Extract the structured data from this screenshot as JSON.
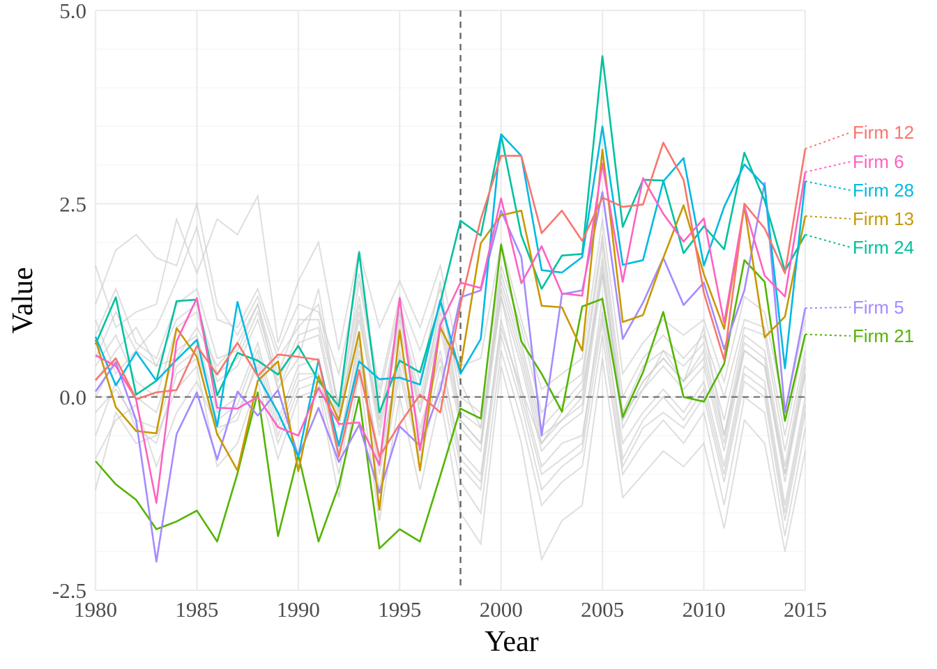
{
  "chart_data": {
    "type": "line",
    "title": "",
    "xlabel": "Year",
    "ylabel": "Value",
    "xlim": [
      1980,
      2015
    ],
    "ylim": [
      -2.5,
      5.0
    ],
    "x_ticks": [
      "1980",
      "1985",
      "1990",
      "1995",
      "2000",
      "2005",
      "2010",
      "2015"
    ],
    "x_tick_values": [
      1980,
      1985,
      1990,
      1995,
      2000,
      2005,
      2010,
      2015
    ],
    "y_ticks": [
      "-2.5",
      "0.0",
      "2.5",
      "5.0"
    ],
    "y_tick_values": [
      -2.5,
      0,
      2.5,
      5
    ],
    "grid": true,
    "reference_lines": {
      "vertical_year": 1998,
      "horizontal_value": 0
    },
    "legend": "direct labels at right end",
    "x": [
      1980,
      1981,
      1982,
      1983,
      1984,
      1985,
      1986,
      1987,
      1988,
      1989,
      1990,
      1991,
      1992,
      1993,
      1994,
      1995,
      1996,
      1997,
      1998,
      1999,
      2000,
      2001,
      2002,
      2003,
      2004,
      2005,
      2006,
      2007,
      2008,
      2009,
      2010,
      2011,
      2012,
      2013,
      2014,
      2015
    ],
    "series": [
      {
        "name": "Firm 12",
        "color": "#F8766D",
        "values": [
          0.22,
          0.5,
          -0.03,
          0.06,
          0.09,
          0.66,
          0.29,
          0.7,
          0.27,
          0.55,
          0.52,
          0.48,
          -0.77,
          0.35,
          -0.77,
          -0.35,
          0.03,
          -0.2,
          1.2,
          2.3,
          3.12,
          3.12,
          2.12,
          2.41,
          2.02,
          2.58,
          2.46,
          2.49,
          3.29,
          2.81,
          1.35,
          0.48,
          2.5,
          2.18,
          1.6,
          3.21
        ]
      },
      {
        "name": "Firm 6",
        "color": "#FF61C3",
        "values": [
          0.54,
          0.4,
          -0.03,
          -1.37,
          0.72,
          1.28,
          -0.14,
          -0.15,
          0.0,
          -0.39,
          -0.5,
          0.12,
          -0.35,
          -0.33,
          -0.88,
          1.28,
          -0.69,
          0.93,
          1.48,
          1.41,
          2.57,
          1.47,
          1.95,
          1.34,
          1.31,
          3.02,
          1.49,
          2.83,
          2.37,
          2.01,
          2.31,
          0.96,
          2.47,
          1.57,
          1.3,
          2.91
        ]
      },
      {
        "name": "Firm 28",
        "color": "#00B9E3",
        "values": [
          0.78,
          0.15,
          0.58,
          0.21,
          0.48,
          0.74,
          -0.38,
          1.23,
          0.27,
          -0.2,
          -0.77,
          0.48,
          -0.63,
          0.46,
          0.23,
          0.25,
          0.16,
          1.25,
          0.3,
          0.75,
          3.4,
          3.12,
          1.64,
          1.61,
          1.81,
          3.5,
          1.71,
          1.77,
          2.79,
          3.09,
          1.7,
          2.46,
          3.01,
          2.73,
          0.37,
          2.79
        ]
      },
      {
        "name": "Firm 13",
        "color": "#C99800",
        "values": [
          0.74,
          -0.13,
          -0.44,
          -0.47,
          0.89,
          0.52,
          -0.48,
          -0.95,
          0.21,
          0.46,
          -0.96,
          0.27,
          -0.3,
          0.84,
          -1.46,
          0.86,
          -0.95,
          0.9,
          0.38,
          1.99,
          2.35,
          2.41,
          1.18,
          1.16,
          0.6,
          3.2,
          0.97,
          1.06,
          1.8,
          2.48,
          1.59,
          0.88,
          2.46,
          0.77,
          1.04,
          2.34
        ]
      },
      {
        "name": "Firm 24",
        "color": "#00C19F",
        "values": [
          0.68,
          1.29,
          0.03,
          0.21,
          1.24,
          1.26,
          0.02,
          0.57,
          0.47,
          0.29,
          0.66,
          0.21,
          -0.12,
          1.87,
          -0.2,
          0.47,
          0.32,
          1.22,
          2.28,
          2.09,
          3.39,
          2.09,
          1.4,
          1.83,
          1.85,
          4.41,
          2.2,
          2.81,
          2.8,
          1.86,
          2.21,
          1.91,
          3.16,
          2.54,
          1.63,
          2.1
        ]
      },
      {
        "name": "Firm 5",
        "color": "#A58AFF",
        "values": [
          0.07,
          0.45,
          -0.3,
          -2.13,
          -0.48,
          0.06,
          -0.81,
          0.07,
          -0.24,
          0.09,
          -0.77,
          -0.14,
          -0.84,
          -0.36,
          -1.24,
          -0.38,
          -0.63,
          0.09,
          1.29,
          1.38,
          2.41,
          1.81,
          -0.5,
          1.33,
          1.38,
          2.65,
          0.75,
          1.22,
          1.8,
          1.19,
          1.48,
          0.62,
          1.38,
          2.77,
          -0.2,
          1.15
        ]
      },
      {
        "name": "Firm 21",
        "color": "#53B400",
        "values": [
          -0.83,
          -1.13,
          -1.33,
          -1.71,
          -1.61,
          -1.47,
          -1.87,
          -0.99,
          0.06,
          -1.8,
          -0.75,
          -1.87,
          -1.15,
          0.0,
          -1.96,
          -1.71,
          -1.87,
          -1.02,
          -0.15,
          -0.28,
          1.97,
          0.72,
          0.3,
          -0.19,
          1.17,
          1.27,
          -0.26,
          0.32,
          1.1,
          0.0,
          -0.06,
          0.43,
          1.77,
          1.49,
          -0.31,
          0.81
        ]
      }
    ],
    "background_series_color": "#cccccc",
    "background_series": [
      [
        1.2,
        1.9,
        2.1,
        1.8,
        1.7,
        2.5,
        1.2,
        0.8,
        1.3,
        0.5,
        0.9,
        1.2,
        -0.2,
        1.5,
        0.0,
        1.2,
        0.2,
        1.5,
        -0.3,
        -0.6,
        1.6,
        0.7,
        -0.4,
        -0.1,
        0.2,
        2.0,
        -0.2,
        0.4,
        0.6,
        0.4,
        0.7,
        -0.3,
        0.9,
        0.8,
        -0.7,
        0.6
      ],
      [
        -0.5,
        0.2,
        -0.4,
        -0.6,
        0.3,
        0.5,
        -0.5,
        -0.2,
        0.4,
        -0.6,
        0.1,
        0.2,
        -1.0,
        0.5,
        -1.2,
        0.3,
        -0.8,
        0.2,
        -1.1,
        -1.5,
        0.6,
        -0.3,
        -1.4,
        -1.1,
        -0.9,
        0.8,
        -1.0,
        -0.6,
        -0.3,
        -0.6,
        -0.2,
        -1.4,
        0.0,
        -0.2,
        -1.8,
        -0.4
      ],
      [
        0.8,
        1.4,
        0.7,
        0.5,
        1.2,
        1.4,
        0.5,
        0.6,
        1.2,
        0.3,
        1.0,
        1.0,
        -0.1,
        1.3,
        -0.3,
        1.1,
        0.0,
        1.1,
        -0.2,
        -0.4,
        1.5,
        0.6,
        -0.5,
        -0.3,
        0.0,
        1.8,
        -0.3,
        0.2,
        0.5,
        0.2,
        0.6,
        -0.5,
        0.8,
        0.6,
        -0.9,
        0.5
      ],
      [
        -1.2,
        -0.2,
        -0.6,
        -0.5,
        0.1,
        0.4,
        -0.9,
        -0.6,
        0.2,
        -0.8,
        0.0,
        0.1,
        -1.3,
        0.3,
        -1.6,
        0.0,
        -1.2,
        0.0,
        -1.5,
        -1.9,
        0.4,
        -0.6,
        -2.1,
        -1.6,
        -1.4,
        0.5,
        -1.3,
        -1.0,
        -0.7,
        -0.9,
        -0.6,
        -1.7,
        -0.3,
        -0.6,
        -2.0,
        -0.7
      ],
      [
        1.7,
        0.9,
        1.1,
        1.2,
        2.3,
        1.6,
        2.3,
        2.1,
        2.6,
        0.7,
        1.5,
        2.0,
        0.6,
        1.9,
        0.9,
        1.5,
        0.9,
        1.7,
        0.4,
        0.5,
        2.0,
        1.0,
        0.1,
        0.3,
        0.5,
        2.3,
        0.3,
        0.7,
        1.0,
        0.8,
        1.0,
        0.2,
        1.3,
        1.1,
        -0.2,
        1.0
      ],
      [
        0.0,
        0.5,
        0.0,
        -0.2,
        0.6,
        0.8,
        -0.2,
        0.0,
        0.7,
        -0.3,
        0.4,
        0.5,
        -0.7,
        0.8,
        -0.9,
        0.6,
        -0.5,
        0.6,
        -0.8,
        -1.1,
        1.0,
        0.0,
        -1.0,
        -0.8,
        -0.6,
        1.3,
        -0.8,
        -0.3,
        0.0,
        -0.3,
        0.1,
        -1.0,
        0.3,
        0.1,
        -1.5,
        -0.1
      ],
      [
        0.5,
        1.1,
        0.6,
        0.4,
        1.0,
        1.2,
        0.3,
        0.5,
        1.1,
        0.2,
        0.8,
        0.9,
        -0.3,
        1.2,
        -0.4,
        1.0,
        -0.1,
        1.0,
        -0.3,
        -0.6,
        1.4,
        0.5,
        -0.6,
        -0.3,
        -0.1,
        1.7,
        -0.3,
        0.2,
        0.5,
        0.2,
        0.5,
        -0.6,
        0.7,
        0.5,
        -1.0,
        0.4
      ],
      [
        -0.8,
        -0.3,
        -0.1,
        -0.9,
        -0.2,
        0.2,
        -0.4,
        -0.3,
        0.5,
        -0.5,
        0.2,
        0.3,
        -0.8,
        0.6,
        -1.0,
        0.4,
        -0.7,
        0.4,
        -0.9,
        -1.2,
        0.8,
        -0.1,
        -1.2,
        -0.9,
        -0.7,
        1.0,
        -0.9,
        -0.4,
        -0.2,
        -0.4,
        0.0,
        -1.1,
        0.2,
        0.0,
        -1.6,
        -0.2
      ],
      [
        0.2,
        0.6,
        0.9,
        0.4,
        0.5,
        0.9,
        0.4,
        0.7,
        1.2,
        0.1,
        0.5,
        1.4,
        -0.2,
        1.0,
        -0.3,
        1.1,
        -0.2,
        1.2,
        0.2,
        -0.4,
        1.3,
        0.1,
        -0.6,
        -0.2,
        0.1,
        1.6,
        -0.2,
        0.1,
        0.6,
        0.2,
        0.9,
        -0.5,
        0.6,
        0.4,
        -1.0,
        0.3
      ],
      [
        1.0,
        0.3,
        0.6,
        0.9,
        1.5,
        2.2,
        1.0,
        0.9,
        1.4,
        0.6,
        1.2,
        1.1,
        0.3,
        1.6,
        0.1,
        1.3,
        0.6,
        1.4,
        0.0,
        -0.2,
        1.7,
        0.9,
        -0.2,
        0.1,
        0.3,
        2.1,
        0.0,
        0.5,
        0.8,
        0.5,
        0.8,
        0.0,
        1.0,
        0.9,
        -0.5,
        0.8
      ],
      [
        -0.2,
        0.1,
        -0.3,
        -0.4,
        0.4,
        0.6,
        -0.3,
        -0.1,
        0.6,
        -0.4,
        0.3,
        0.3,
        -0.6,
        0.7,
        -0.8,
        0.5,
        -0.4,
        0.5,
        -0.7,
        -1.0,
        0.9,
        0.1,
        -0.9,
        -0.6,
        -0.5,
        1.1,
        -0.6,
        -0.2,
        0.1,
        -0.2,
        0.2,
        -0.9,
        0.4,
        0.2,
        -1.4,
        0.0
      ],
      [
        0.4,
        0.8,
        0.2,
        0.0,
        0.9,
        1.1,
        0.2,
        0.4,
        1.0,
        0.1,
        0.7,
        0.8,
        -0.4,
        1.1,
        -0.5,
        0.9,
        -0.2,
        0.9,
        -0.4,
        -0.7,
        1.3,
        0.4,
        -0.7,
        -0.4,
        -0.2,
        1.6,
        -0.4,
        0.1,
        0.4,
        0.1,
        0.4,
        -0.7,
        0.6,
        0.4,
        -1.1,
        0.3
      ]
    ]
  }
}
